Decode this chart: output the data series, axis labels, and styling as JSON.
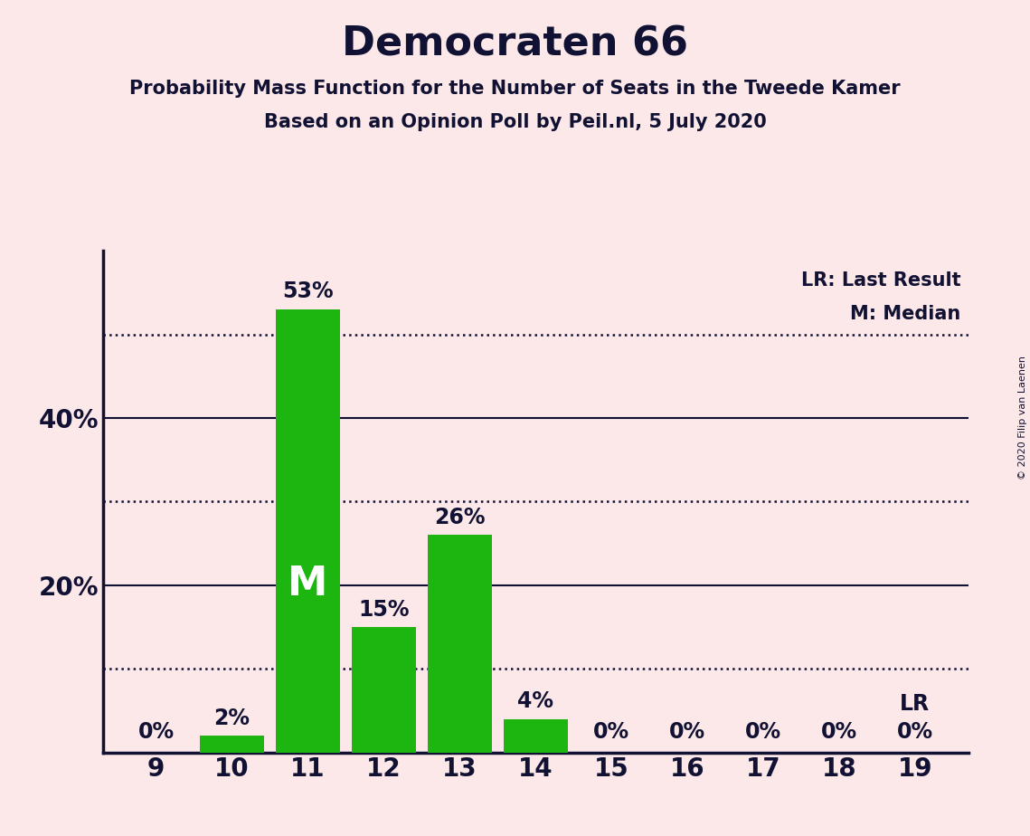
{
  "title": "Democraten 66",
  "subtitle1": "Probability Mass Function for the Number of Seats in the Tweede Kamer",
  "subtitle2": "Based on an Opinion Poll by Peil.nl, 5 July 2020",
  "copyright": "© 2020 Filip van Laenen",
  "seats": [
    9,
    10,
    11,
    12,
    13,
    14,
    15,
    16,
    17,
    18,
    19
  ],
  "probabilities": [
    0,
    2,
    53,
    15,
    26,
    4,
    0,
    0,
    0,
    0,
    0
  ],
  "bar_color": "#1db510",
  "background_color": "#fce8e8",
  "text_color": "#111133",
  "median_seat": 11,
  "last_result_seat": 19,
  "legend_lr": "LR: Last Result",
  "legend_m": "M: Median",
  "yticks": [
    20,
    40
  ],
  "dotted_lines": [
    10,
    30,
    50
  ],
  "ylim": [
    0,
    60
  ],
  "solid_lines": [
    20,
    40
  ]
}
